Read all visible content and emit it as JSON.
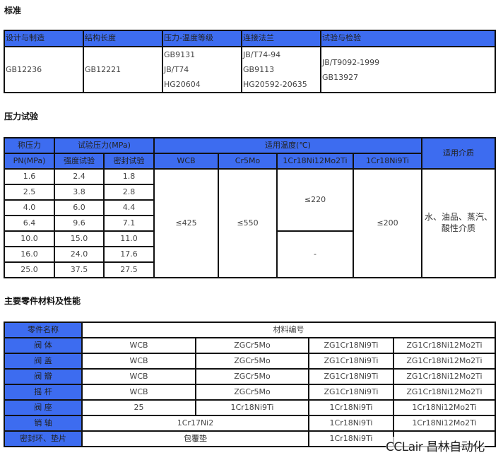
{
  "standards": {
    "title": "标准",
    "headers": [
      "设计与制造",
      "结构长度",
      "压力-温度等级",
      "连接法兰",
      "试验与检验"
    ],
    "cells": [
      [
        "GB12236"
      ],
      [
        "GB12221"
      ],
      [
        "GB9131",
        "JB/T74",
        "HG20604"
      ],
      [
        "JB/T74-94",
        "GB9113",
        "HG20592-20635"
      ],
      [
        "JB/T9092-1999",
        "GB13927"
      ]
    ]
  },
  "pressure": {
    "title": "压力试验",
    "h_pn": [
      "称压力",
      "PN(MPa)"
    ],
    "h_test": "试验压力(MPa)",
    "h_strength": "强度试验",
    "h_seal": "密封试验",
    "h_temp": "适用温度(℃)",
    "h_materials": [
      "WCB",
      "Cr5Mo",
      "1Cr18Ni12Mo2Ti",
      "1Cr18Ni9Ti"
    ],
    "h_medium": "适用介质",
    "rows": [
      [
        "1.6",
        "2.4",
        "1.8"
      ],
      [
        "2.5",
        "3.8",
        "2.8"
      ],
      [
        "4.0",
        "6.0",
        "4.4"
      ],
      [
        "6.4",
        "9.6",
        "7.1"
      ],
      [
        "10.0",
        "15.0",
        "11.0"
      ],
      [
        "16.0",
        "24.0",
        "17.6"
      ],
      [
        "25.0",
        "37.5",
        "27.5"
      ]
    ],
    "wcb": "≤425",
    "cr5mo": "≤550",
    "mo2ti_low": "≤220",
    "mo2ti_high": "-",
    "ni9ti": "≤200",
    "medium": "水、油品、蒸汽、酸性介质"
  },
  "parts": {
    "title": "主要零件材料及性能",
    "h_name": "零件名称",
    "h_material": "材料编号",
    "rows": [
      {
        "name": "阀 体",
        "m": [
          "WCB",
          "ZGCr5Mo",
          "ZG1Cr18Ni9Ti",
          "ZG1Cr18Ni12Mo2Ti"
        ]
      },
      {
        "name": "阀 盖",
        "m": [
          "WCB",
          "ZGCr5Mo",
          "ZG1Cr18Ni9Ti",
          "ZG1Cr18Ni12Mo2Ti"
        ]
      },
      {
        "name": "阀 瓣",
        "m": [
          "WCB",
          "ZGCr5Mo",
          "ZG1Cr18Ni9Ti",
          "ZG1Cr18Ni12Mo2Ti"
        ]
      },
      {
        "name": "摇 杆",
        "m": [
          "WCB",
          "ZGCr5Mo",
          "ZG1Cr18Ni9Ti",
          "ZG1Cr18Ni12Mo2Ti"
        ]
      },
      {
        "name": "阀 座",
        "m": [
          "25",
          "1Cr18Ni9Ti",
          "1Cr18Ni9Ti",
          "1Cr18Ni12Mo2Ti"
        ]
      }
    ],
    "pin": {
      "name": "销 轴",
      "m": [
        "1Cr17Ni2",
        "1Cr18Ni9Ti",
        "1Cr18Ni12Mo2Ti"
      ]
    },
    "seal": {
      "name": "密封环、垫片",
      "m": [
        "包覆垫",
        "1Cr18Ni9Ti"
      ]
    }
  },
  "watermark": "CCLair 昌林自动化",
  "colors": {
    "header_blue": "#3d6cf0"
  }
}
